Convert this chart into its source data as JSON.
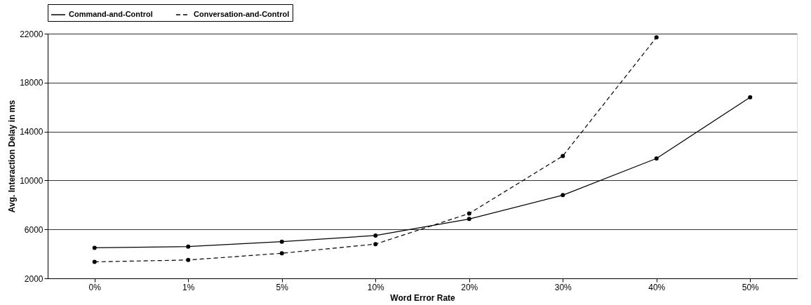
{
  "chart_data": {
    "type": "line",
    "xlabel": "Word Error Rate",
    "ylabel": "Avg. Interaction Delay in ms",
    "categories": [
      "0%",
      "1%",
      "5%",
      "10%",
      "20%",
      "30%",
      "40%",
      "50%"
    ],
    "series": [
      {
        "name": "Command-and-Control",
        "color": "#000000",
        "line_style": "solid",
        "values": [
          4500,
          4600,
          5000,
          5500,
          6850,
          8800,
          11800,
          16800
        ]
      },
      {
        "name": "Conversation-and-Control",
        "color": "#000000",
        "line_style": "dashed",
        "values": [
          3350,
          3500,
          4050,
          4800,
          7300,
          12000,
          21700,
          null
        ]
      }
    ],
    "ylim": [
      2000,
      22000
    ],
    "yticks": [
      2000,
      6000,
      10000,
      14000,
      18000,
      22000
    ],
    "grid": "y",
    "legend": "top",
    "marker": "circle"
  }
}
